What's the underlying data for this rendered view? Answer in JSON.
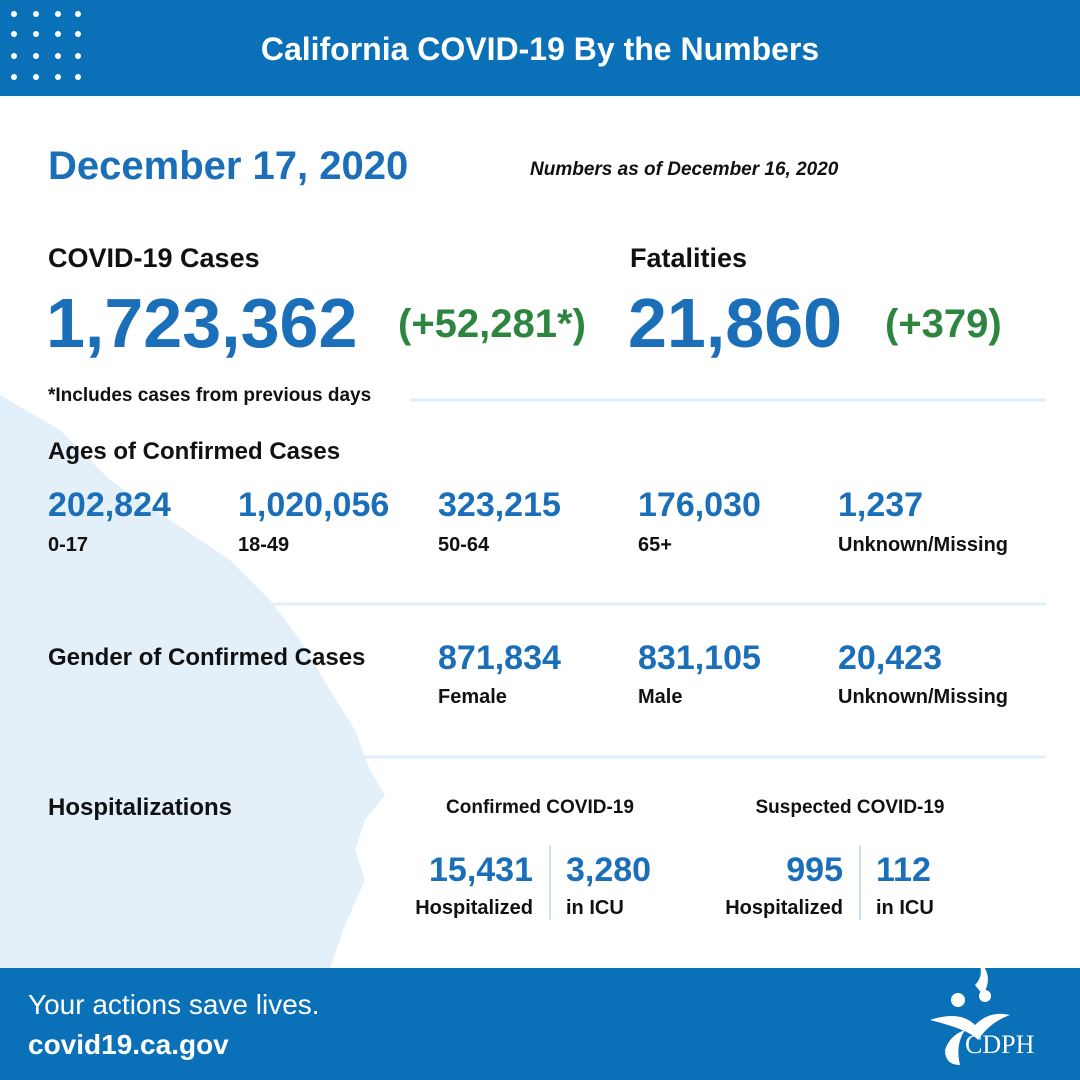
{
  "header": {
    "title": "California COVID-19 By the Numbers"
  },
  "date": "December 17, 2020",
  "as_of": "Numbers as of December 16, 2020",
  "cases": {
    "label": "COVID-19 Cases",
    "total": "1,723,362",
    "change": "(+52,281*)",
    "note": "*Includes cases from previous days"
  },
  "fatalities": {
    "label": "Fatalities",
    "total": "21,860",
    "change": "(+379)"
  },
  "ages": {
    "title": "Ages of Confirmed Cases",
    "groups": [
      {
        "value": "202,824",
        "label": "0-17"
      },
      {
        "value": "1,020,056",
        "label": "18-49"
      },
      {
        "value": "323,215",
        "label": "50-64"
      },
      {
        "value": "176,030",
        "label": "65+"
      },
      {
        "value": "1,237",
        "label": "Unknown/Missing"
      }
    ]
  },
  "gender": {
    "title": "Gender of Confirmed Cases",
    "groups": [
      {
        "value": "871,834",
        "label": "Female"
      },
      {
        "value": "831,105",
        "label": "Male"
      },
      {
        "value": "20,423",
        "label": "Unknown/Missing"
      }
    ]
  },
  "hospitalizations": {
    "title": "Hospitalizations",
    "confirmed": {
      "title": "Confirmed COVID-19",
      "items": [
        {
          "value": "15,431",
          "label": "Hospitalized"
        },
        {
          "value": "3,280",
          "label": "in ICU"
        }
      ]
    },
    "suspected": {
      "title": "Suspected COVID-19",
      "items": [
        {
          "value": "995",
          "label": "Hospitalized"
        },
        {
          "value": "112",
          "label": "in ICU"
        }
      ]
    }
  },
  "footer": {
    "slogan": "Your actions save lives.",
    "url": "covid19.ca.gov",
    "logo": "CDPH"
  }
}
